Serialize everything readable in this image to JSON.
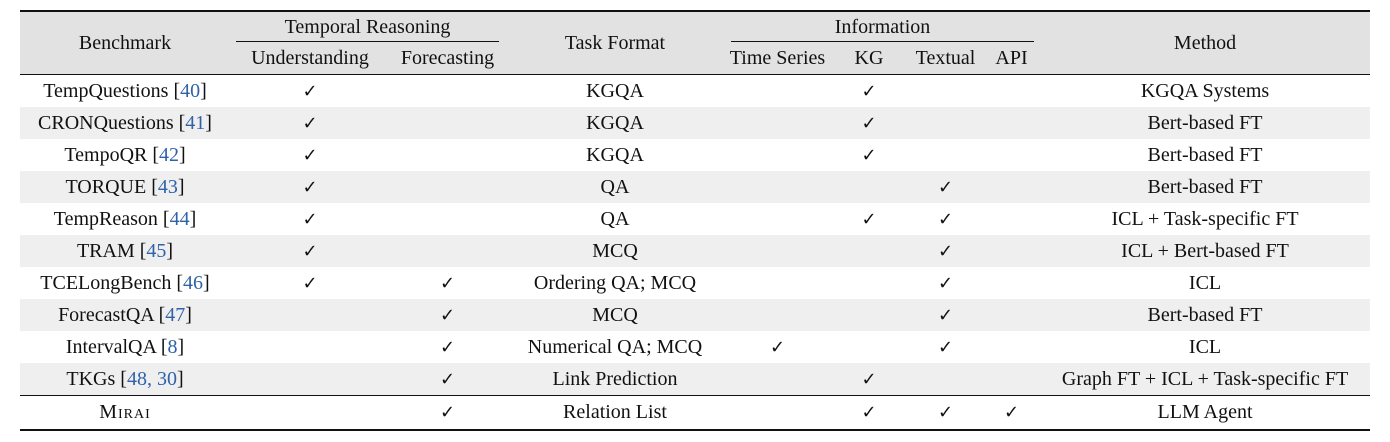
{
  "header": {
    "benchmark": "Benchmark",
    "temporal_reasoning": "Temporal Reasoning",
    "understanding": "Understanding",
    "forecasting": "Forecasting",
    "task_format": "Task Format",
    "information": "Information",
    "time_series": "Time Series",
    "kg": "KG",
    "textual": "Textual",
    "api": "API",
    "method": "Method"
  },
  "check_symbol": "✓",
  "rows": [
    {
      "name": "TempQuestions [",
      "ref": "40",
      "close": "]",
      "und": "✓",
      "fore": "",
      "task": "KGQA",
      "ts": "",
      "kg": "✓",
      "text": "",
      "api": "",
      "method": "KGQA Systems"
    },
    {
      "name": "CRONQuestions [",
      "ref": "41",
      "close": "]",
      "und": "✓",
      "fore": "",
      "task": "KGQA",
      "ts": "",
      "kg": "✓",
      "text": "",
      "api": "",
      "method": "Bert-based FT"
    },
    {
      "name": "TempoQR [",
      "ref": "42",
      "close": "]",
      "und": "✓",
      "fore": "",
      "task": "KGQA",
      "ts": "",
      "kg": "✓",
      "text": "",
      "api": "",
      "method": "Bert-based FT"
    },
    {
      "name": "TORQUE [",
      "ref": "43",
      "close": "]",
      "und": "✓",
      "fore": "",
      "task": "QA",
      "ts": "",
      "kg": "",
      "text": "✓",
      "api": "",
      "method": "Bert-based FT"
    },
    {
      "name": "TempReason [",
      "ref": "44",
      "close": "]",
      "und": "✓",
      "fore": "",
      "task": "QA",
      "ts": "",
      "kg": "✓",
      "text": "✓",
      "api": "",
      "method": "ICL + Task-specific FT"
    },
    {
      "name": "TRAM [",
      "ref": "45",
      "close": "]",
      "und": "✓",
      "fore": "",
      "task": "MCQ",
      "ts": "",
      "kg": "",
      "text": "✓",
      "api": "",
      "method": "ICL + Bert-based FT"
    },
    {
      "name": "TCELongBench [",
      "ref": "46",
      "close": "]",
      "und": "✓",
      "fore": "✓",
      "task": "Ordering QA; MCQ",
      "ts": "",
      "kg": "",
      "text": "✓",
      "api": "",
      "method": "ICL"
    },
    {
      "name": "ForecastQA [",
      "ref": "47",
      "close": "]",
      "und": "",
      "fore": "✓",
      "task": "MCQ",
      "ts": "",
      "kg": "",
      "text": "✓",
      "api": "",
      "method": "Bert-based FT"
    },
    {
      "name": "IntervalQA [",
      "ref": "8",
      "close": "]",
      "und": "",
      "fore": "✓",
      "task": "Numerical QA; MCQ",
      "ts": "✓",
      "kg": "",
      "text": "✓",
      "api": "",
      "method": "ICL"
    },
    {
      "name": "TKGs [",
      "ref": "48, 30",
      "close": "]",
      "und": "",
      "fore": "✓",
      "task": "Link Prediction",
      "ts": "",
      "kg": "✓",
      "text": "",
      "api": "",
      "method": "Graph FT + ICL + Task-specific FT"
    }
  ],
  "ours": {
    "name": "Mirai",
    "und": "",
    "fore": "✓",
    "task": "Relation List",
    "ts": "",
    "kg": "✓",
    "text": "✓",
    "api": "✓",
    "method": "LLM Agent"
  }
}
